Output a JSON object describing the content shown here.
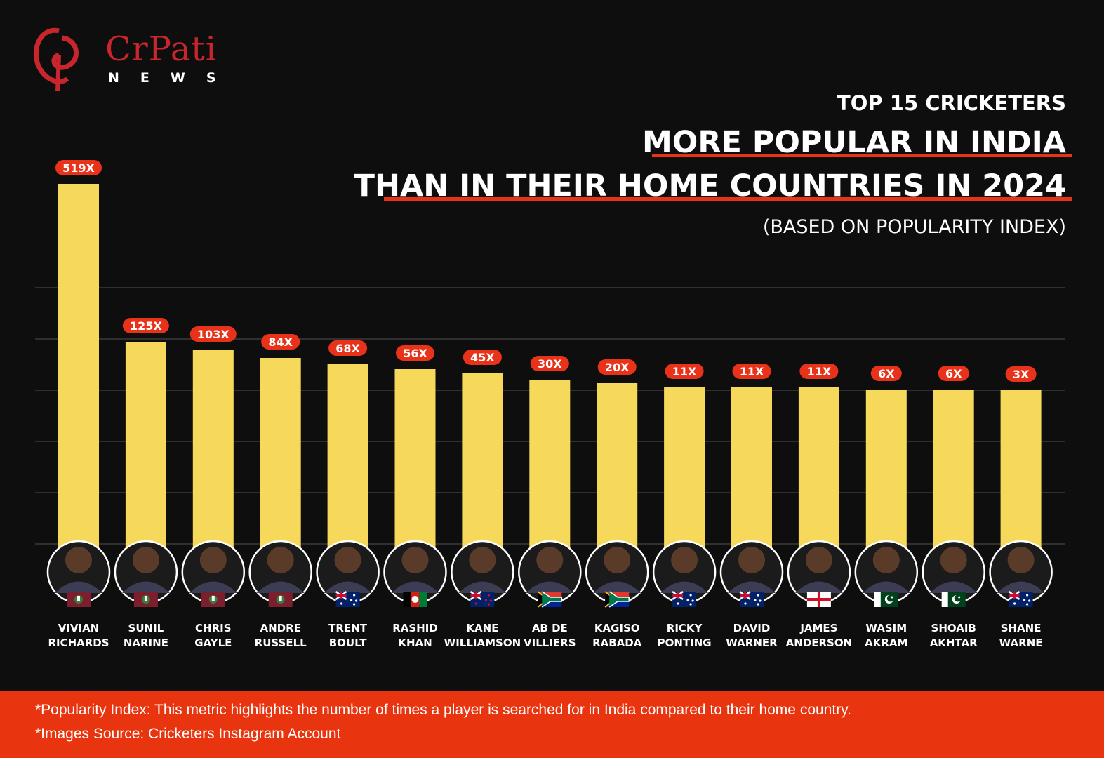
{
  "logo": {
    "name": "CrPati",
    "sub": "NEWS"
  },
  "header": {
    "kicker": "TOP 15 CRICKETERS",
    "title_line1": "MORE POPULAR IN INDIA",
    "title_line2": "THAN IN THEIR HOME COUNTRIES IN 2024",
    "subtitle": "(BASED ON POPULARITY INDEX)"
  },
  "colors": {
    "background": "#0e0e0e",
    "bar": "#f6d95b",
    "badge": "#e8321a",
    "accent": "#e8321a",
    "grid": "#3a3a3a"
  },
  "chart_data": {
    "type": "bar",
    "categories": [
      [
        "VIVIAN",
        "RICHARDS"
      ],
      [
        "SUNIL",
        "NARINE"
      ],
      [
        "CHRIS",
        "GAYLE"
      ],
      [
        "ANDRE",
        "RUSSELL"
      ],
      [
        "TRENT",
        "BOULT"
      ],
      [
        "RASHID",
        "KHAN"
      ],
      [
        "KANE",
        "WILLIAMSON"
      ],
      [
        "AB DE",
        "VILLIERS"
      ],
      [
        "KAGISO",
        "RABADA"
      ],
      [
        "RICKY",
        "PONTING"
      ],
      [
        "DAVID",
        "WARNER"
      ],
      [
        "JAMES",
        "ANDERSON"
      ],
      [
        "WASIM",
        "AKRAM"
      ],
      [
        "SHOAIB",
        "AKHTAR"
      ],
      [
        "SHANE",
        "WARNE"
      ]
    ],
    "values": [
      519,
      125,
      103,
      84,
      68,
      56,
      45,
      30,
      20,
      11,
      11,
      11,
      6,
      6,
      3
    ],
    "labels": [
      "519X",
      "125X",
      "103X",
      "84X",
      "68X",
      "56X",
      "45X",
      "30X",
      "20X",
      "11X",
      "11X",
      "11X",
      "6X",
      "6X",
      "3X"
    ],
    "flags": [
      "west-indies",
      "west-indies",
      "west-indies",
      "west-indies",
      "australia",
      "afghanistan",
      "new-zealand",
      "south-africa",
      "south-africa",
      "australia",
      "australia",
      "england",
      "pakistan",
      "pakistan",
      "australia"
    ],
    "grid": true
  },
  "footer": {
    "note1": "*Popularity Index: This metric highlights the number of times a player is searched for in India compared to their home country.",
    "note2": "*Images Source: Cricketers Instagram Account"
  }
}
